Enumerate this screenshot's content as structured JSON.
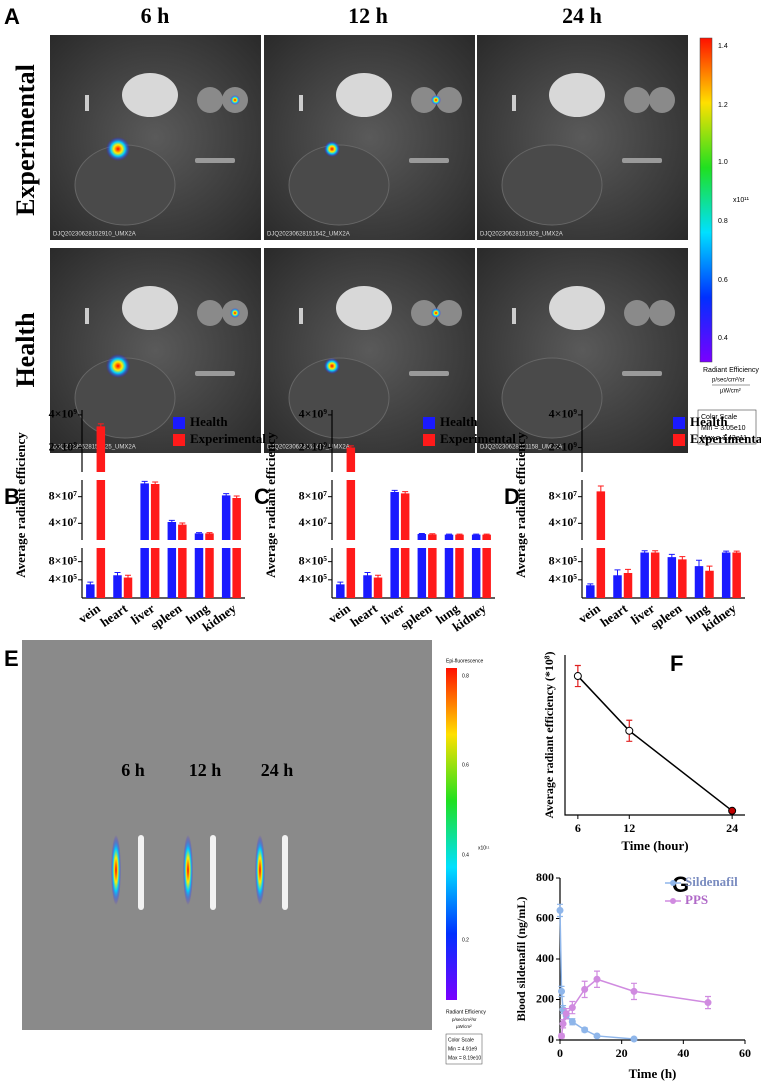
{
  "figure": {
    "panel_a": {
      "letter": "A",
      "columns": [
        "6 h",
        "12 h",
        "24 h"
      ],
      "rows": [
        "Experimental",
        "Health"
      ],
      "captions": [
        [
          "DJQ20230628152910_UMX2A",
          "DJQ20230628151542_UMX2A",
          "DJQ20230628151929_UMX2A"
        ],
        [
          "DJQ20230628150625_UMX2A",
          "DJQ20230628152417_UMX2A",
          "DJQ20230628151158_UMX2A"
        ]
      ],
      "colorbar": {
        "ticks": [
          "1.4",
          "1.2",
          "1.0",
          "0.8",
          "0.6",
          "0.4"
        ],
        "exponent": "x10¹¹",
        "title": "Radiant Efficiency",
        "unit_top": "p/sec/cm²/sr",
        "unit_bottom": "µW/cm²",
        "scale_title": "Color Scale",
        "min": "Min = 3.05e10",
        "max": "Max = 1.43e11"
      }
    },
    "panel_e": {
      "letter": "E",
      "labels": [
        "6 h",
        "12 h",
        "24 h"
      ],
      "colorbar": {
        "title_top": "Epi-fluorescence",
        "ticks": [
          "0.8",
          "0.6",
          "0.4",
          "0.2"
        ],
        "exponent": "x10¹¹",
        "title": "Radiant Efficiency",
        "unit_top": "p/sec/cm²/sr",
        "unit_bottom": "µW/cm²",
        "scale_title": "Color Scale",
        "min": "Min = 4.91e9",
        "max": "Max = 8.19e10"
      }
    }
  },
  "chart_data": [
    {
      "type": "broken_bar",
      "letter": "B",
      "ylabel": "Average radiant efficiency",
      "categories": [
        "vein",
        "heart",
        "liver",
        "spleen",
        "lung",
        "kidney"
      ],
      "series": [
        {
          "name": "Health",
          "color": "#1a1aff",
          "values": [
            300000,
            500000,
            100000000,
            42000000,
            25000000,
            82000000
          ],
          "errors": [
            50000,
            60000,
            3000000,
            2500000,
            1000000,
            2500000
          ]
        },
        {
          "name": "Experimental",
          "color": "#ff1a1a",
          "values": [
            3300000000,
            450000,
            99000000,
            38000000,
            25000000,
            78000000
          ],
          "errors": [
            150000000,
            50000,
            3000000,
            2500000,
            1000000,
            3000000
          ]
        }
      ],
      "segments": [
        {
          "ylim": [
            0,
            1100000
          ],
          "yticks": [
            {
              "value": 400000,
              "label": "4×10⁵"
            },
            {
              "value": 800000,
              "label": "8×10⁵"
            }
          ]
        },
        {
          "ylim": [
            15000000,
            105000000
          ],
          "yticks": [
            {
              "value": 40000000,
              "label": "4×10⁷"
            },
            {
              "value": 80000000,
              "label": "8×10⁷"
            }
          ]
        },
        {
          "ylim": [
            500000000,
            4300000000
          ],
          "yticks": [
            {
              "value": 2000000000,
              "label": "2×10⁹"
            },
            {
              "value": 4000000000,
              "label": "4×10⁹"
            }
          ]
        }
      ],
      "legend": "top-right"
    },
    {
      "type": "broken_bar",
      "letter": "C",
      "ylabel": "Average radiant efficiency",
      "categories": [
        "vein",
        "heart",
        "liver",
        "spleen",
        "lung",
        "kidney"
      ],
      "series": [
        {
          "name": "Health",
          "color": "#1a1aff",
          "values": [
            300000,
            500000,
            87000000,
            24000000,
            23000000,
            23000000
          ],
          "errors": [
            50000,
            60000,
            2500000,
            800000,
            800000,
            800000
          ]
        },
        {
          "name": "Experimental",
          "color": "#ff1a1a",
          "values": [
            2000000000,
            450000,
            85000000,
            23500000,
            23000000,
            23000000
          ],
          "errors": [
            100000000,
            50000,
            2500000,
            800000,
            800000,
            800000
          ]
        }
      ],
      "segments": [
        {
          "ylim": [
            0,
            1100000
          ],
          "yticks": [
            {
              "value": 400000,
              "label": "4×10⁵"
            },
            {
              "value": 800000,
              "label": "8×10⁵"
            }
          ]
        },
        {
          "ylim": [
            15000000,
            105000000
          ],
          "yticks": [
            {
              "value": 40000000,
              "label": "4×10⁷"
            },
            {
              "value": 80000000,
              "label": "8×10⁷"
            }
          ]
        },
        {
          "ylim": [
            500000000,
            4300000000
          ],
          "yticks": [
            {
              "value": 2000000000,
              "label": "2×10⁹"
            },
            {
              "value": 4000000000,
              "label": "4×10⁹"
            }
          ]
        }
      ],
      "legend": "top-right"
    },
    {
      "type": "broken_bar",
      "letter": "D",
      "ylabel": "Average radiant efficiency",
      "categories": [
        "vein",
        "heart",
        "liver",
        "spleen",
        "lung",
        "kidney"
      ],
      "series": [
        {
          "name": "Health",
          "color": "#1a1aff",
          "values": [
            280000,
            500000,
            1000000,
            900000,
            700000,
            1000000
          ],
          "errors": [
            30000,
            120000,
            40000,
            60000,
            130000,
            30000
          ]
        },
        {
          "name": "Experimental",
          "color": "#ff1a1a",
          "values": [
            88000000,
            550000,
            1000000,
            850000,
            600000,
            1000000
          ],
          "errors": [
            8000000,
            80000,
            40000,
            60000,
            100000,
            30000
          ]
        }
      ],
      "segments": [
        {
          "ylim": [
            0,
            1100000
          ],
          "yticks": [
            {
              "value": 400000,
              "label": "4×10⁵"
            },
            {
              "value": 800000,
              "label": "8×10⁵"
            }
          ]
        },
        {
          "ylim": [
            15000000,
            105000000
          ],
          "yticks": [
            {
              "value": 40000000,
              "label": "4×10⁷"
            },
            {
              "value": 80000000,
              "label": "8×10⁷"
            }
          ]
        },
        {
          "ylim": [
            500000000,
            4300000000
          ],
          "yticks": [
            {
              "value": 2000000000,
              "label": "2×10⁹"
            },
            {
              "value": 4000000000,
              "label": "4×10⁹"
            }
          ]
        }
      ],
      "legend": "top-right"
    },
    {
      "type": "line",
      "letter": "F",
      "ylabel": "Average radiant efficiency (*10⁸)",
      "xlabel": "Time (hour)",
      "x": [
        6,
        12,
        24
      ],
      "values": [
        33,
        20,
        1
      ],
      "errors": [
        2.5,
        2.5,
        0.3
      ],
      "color": "#000000",
      "error_color": "#e02020",
      "xlim": [
        4.5,
        25.5
      ],
      "xticks": [
        6,
        12,
        24
      ],
      "ylim": [
        0,
        38
      ]
    },
    {
      "type": "line",
      "letter": "G",
      "ylabel": "Blood sildenafil (ng/mL)",
      "xlabel": "Time (h)",
      "series": [
        {
          "name": "Sildenafil",
          "color": "#8fb6ea",
          "x": [
            0,
            0.5,
            1,
            2,
            4,
            8,
            12,
            24
          ],
          "values": [
            640,
            240,
            150,
            120,
            90,
            50,
            20,
            5
          ],
          "errors": [
            30,
            25,
            20,
            15,
            15,
            10,
            5,
            3
          ]
        },
        {
          "name": "PPS",
          "color": "#d08be0",
          "x": [
            0.5,
            1,
            2,
            4,
            8,
            12,
            24,
            48
          ],
          "values": [
            20,
            80,
            130,
            160,
            250,
            300,
            240,
            185
          ],
          "errors": [
            10,
            20,
            25,
            30,
            40,
            40,
            40,
            30
          ]
        }
      ],
      "xlim": [
        0,
        60
      ],
      "xticks": [
        0,
        20,
        40,
        60
      ],
      "ylim": [
        0,
        800
      ],
      "yticks": [
        0,
        200,
        400,
        600,
        800
      ],
      "legend": "top-right"
    }
  ]
}
